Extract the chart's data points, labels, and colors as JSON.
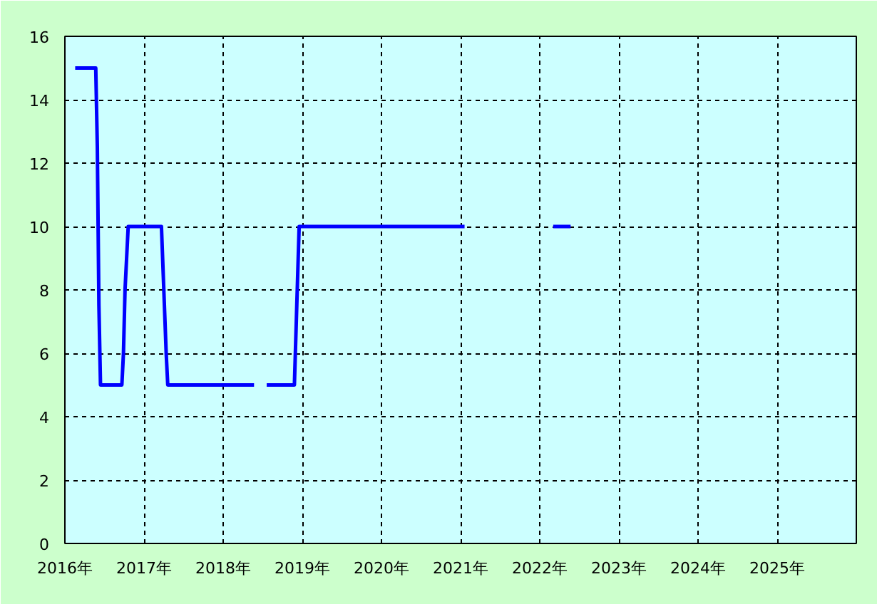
{
  "chart_data": {
    "type": "line",
    "series": [
      {
        "color": "#0000ff",
        "x": [
          2016.13,
          2016.39,
          2016.41,
          2016.43,
          2016.45,
          2016.72,
          2016.74,
          2016.76,
          2016.78,
          2016.8,
          2017.22,
          2017.25,
          2017.28,
          2017.3,
          2018.39,
          2018.47,
          2018.55,
          2018.9,
          2018.93,
          2018.96,
          2021.05,
          2021.6,
          2022.17,
          2022.39
        ],
        "values": [
          15,
          15,
          12.5,
          7.5,
          5,
          5,
          6,
          8,
          9,
          10,
          10,
          8,
          6,
          5,
          5,
          null,
          5,
          5,
          7.5,
          10,
          10,
          null,
          10,
          10
        ]
      }
    ],
    "xlim": [
      2016,
      2026
    ],
    "xticks": [
      {
        "value": 2016,
        "label": "2016年"
      },
      {
        "value": 2017,
        "label": "2017年"
      },
      {
        "value": 2018,
        "label": "2018年"
      },
      {
        "value": 2019,
        "label": "2019年"
      },
      {
        "value": 2020,
        "label": "2020年"
      },
      {
        "value": 2021,
        "label": "2021年"
      },
      {
        "value": 2022,
        "label": "2022年"
      },
      {
        "value": 2023,
        "label": "2023年"
      },
      {
        "value": 2024,
        "label": "2024年"
      },
      {
        "value": 2025,
        "label": "2025年"
      }
    ],
    "ylim": [
      0,
      16
    ],
    "yticks": [
      0,
      2,
      4,
      6,
      8,
      10,
      12,
      14,
      16
    ],
    "grid": true
  }
}
